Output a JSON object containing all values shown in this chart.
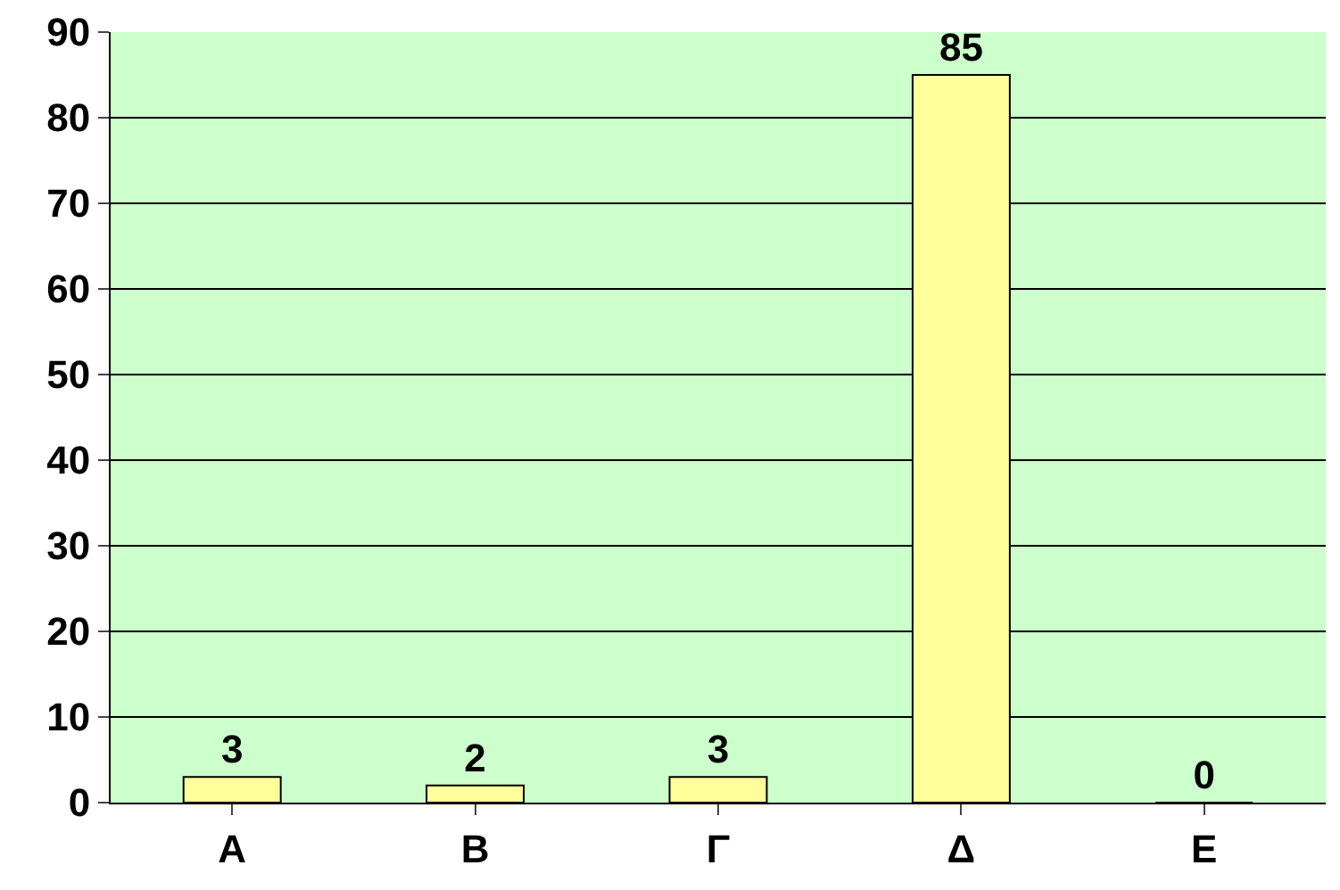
{
  "chart_data": {
    "type": "bar",
    "categories": [
      "Α",
      "Β",
      "Γ",
      "Δ",
      "Ε"
    ],
    "values": [
      3,
      2,
      3,
      85,
      0
    ],
    "color": "#ffff99",
    "ylim": [
      0,
      90
    ],
    "yticks": [
      0,
      10,
      20,
      30,
      40,
      50,
      60,
      70,
      80,
      90
    ],
    "grid": "y",
    "data_labels": true
  }
}
